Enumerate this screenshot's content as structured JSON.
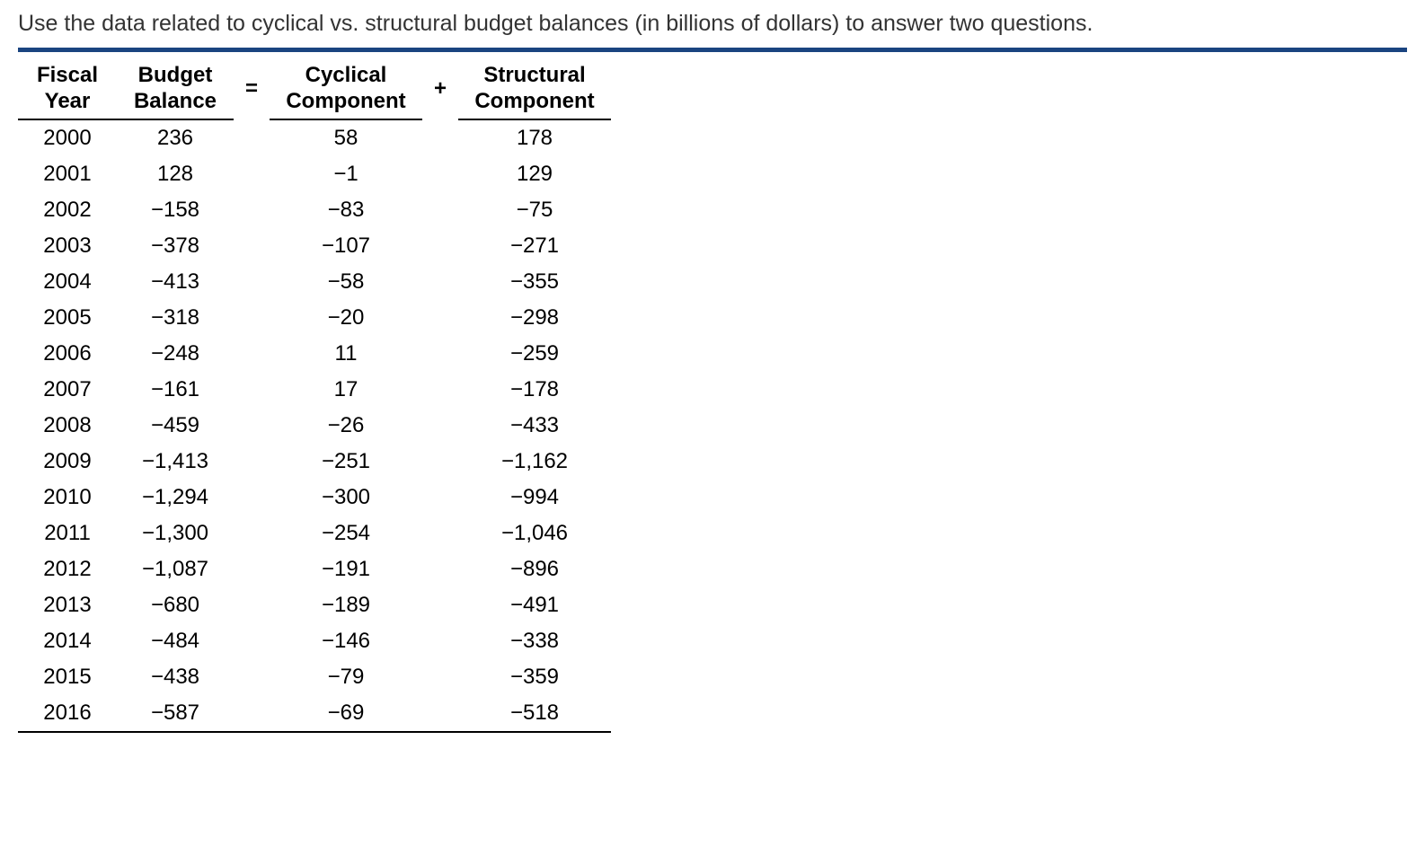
{
  "prompt": "Use the data related to cyclical vs. structural budget balances (in billions of dollars) to answer two questions.",
  "divider_color": "#1a4480",
  "table": {
    "headers": {
      "year_line1": "Fiscal",
      "year_line2": "Year",
      "balance_line1": "Budget",
      "balance_line2": "Balance",
      "equals": "=",
      "cyclical_line1": "Cyclical",
      "cyclical_line2": "Component",
      "plus": "+",
      "structural_line1": "Structural",
      "structural_line2": "Component"
    },
    "rows": [
      {
        "year": "2000",
        "balance": "236",
        "cyclical": "58",
        "structural": "178"
      },
      {
        "year": "2001",
        "balance": "128",
        "cyclical": "−1",
        "structural": "129"
      },
      {
        "year": "2002",
        "balance": "−158",
        "cyclical": "−83",
        "structural": "−75"
      },
      {
        "year": "2003",
        "balance": "−378",
        "cyclical": "−107",
        "structural": "−271"
      },
      {
        "year": "2004",
        "balance": "−413",
        "cyclical": "−58",
        "structural": "−355"
      },
      {
        "year": "2005",
        "balance": "−318",
        "cyclical": "−20",
        "structural": "−298"
      },
      {
        "year": "2006",
        "balance": "−248",
        "cyclical": "11",
        "structural": "−259"
      },
      {
        "year": "2007",
        "balance": "−161",
        "cyclical": "17",
        "structural": "−178"
      },
      {
        "year": "2008",
        "balance": "−459",
        "cyclical": "−26",
        "structural": "−433"
      },
      {
        "year": "2009",
        "balance": "−1,413",
        "cyclical": "−251",
        "structural": "−1,162"
      },
      {
        "year": "2010",
        "balance": "−1,294",
        "cyclical": "−300",
        "structural": "−994"
      },
      {
        "year": "2011",
        "balance": "−1,300",
        "cyclical": "−254",
        "structural": "−1,046"
      },
      {
        "year": "2012",
        "balance": "−1,087",
        "cyclical": "−191",
        "structural": "−896"
      },
      {
        "year": "2013",
        "balance": "−680",
        "cyclical": "−189",
        "structural": "−491"
      },
      {
        "year": "2014",
        "balance": "−484",
        "cyclical": "−146",
        "structural": "−338"
      },
      {
        "year": "2015",
        "balance": "−438",
        "cyclical": "−79",
        "structural": "−359"
      },
      {
        "year": "2016",
        "balance": "−587",
        "cyclical": "−69",
        "structural": "−518"
      }
    ]
  },
  "styling": {
    "background_color": "#ffffff",
    "text_color": "#333333",
    "table_text_color": "#000000",
    "border_color": "#000000",
    "prompt_fontsize": 25,
    "table_fontsize": 24
  }
}
